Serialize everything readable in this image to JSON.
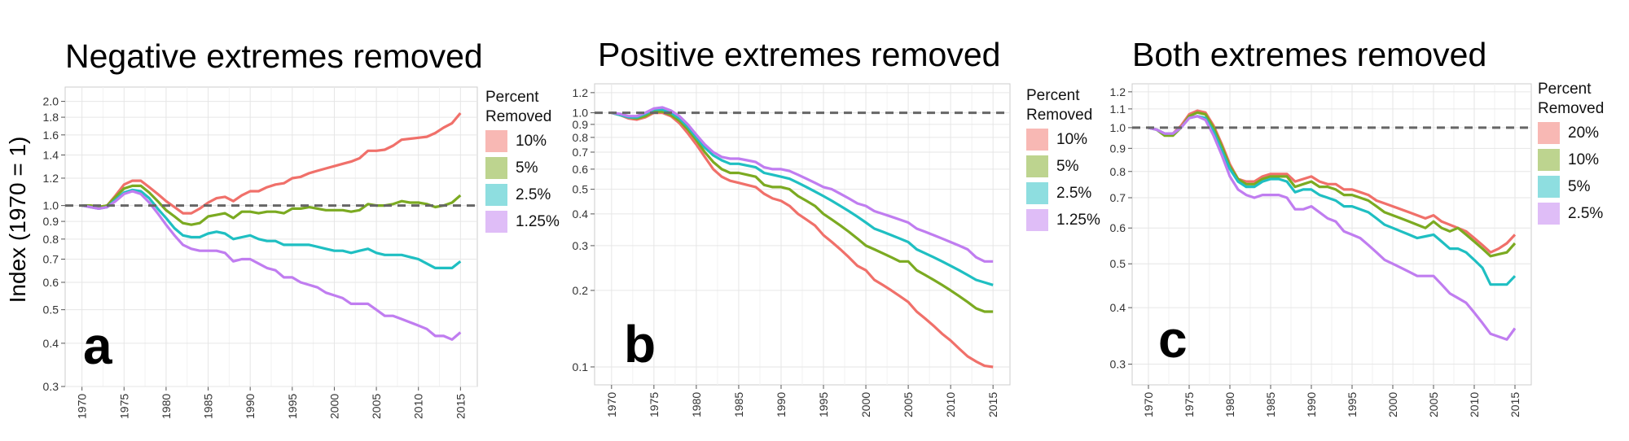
{
  "y_axis_label": "Index (1970 = 1)",
  "colors": {
    "red": "#F0706A",
    "green": "#7BAA21",
    "cyan": "#1FBFC2",
    "purple": "#C07DF0",
    "red_light": "#F8B8B4",
    "green_light": "#BDD48F",
    "cyan_light": "#8EDEE0",
    "purple_light": "#DFBDF7",
    "ref_line": "#666666"
  },
  "chart_data": [
    {
      "type": "line",
      "panel_letter": "a",
      "title": "Negative extremes removed",
      "xlabel": "",
      "ylabel": "Index (1970 = 1)",
      "yscale": "log",
      "ylim": [
        0.3,
        2.2
      ],
      "xlim": [
        1968,
        2017
      ],
      "x_ticks": [
        "1970",
        "1975",
        "1980",
        "1985",
        "1990",
        "1995",
        "2000",
        "2005",
        "2010",
        "2015"
      ],
      "y_ticks": [
        "0.3",
        "0.4",
        "0.5",
        "0.6",
        "0.7",
        "0.8",
        "0.9",
        "1.0",
        "1.2",
        "1.4",
        "1.6",
        "1.8",
        "2.0"
      ],
      "reference_line": 1.0,
      "legend": {
        "title": "Percent Removed",
        "labels": [
          "10%",
          "5%",
          "2.5%",
          "1.25%"
        ]
      },
      "x": [
        1970,
        1971,
        1972,
        1973,
        1974,
        1975,
        1976,
        1977,
        1978,
        1979,
        1980,
        1981,
        1982,
        1983,
        1984,
        1985,
        1986,
        1987,
        1988,
        1989,
        1990,
        1991,
        1992,
        1993,
        1994,
        1995,
        1996,
        1997,
        1998,
        1999,
        2000,
        2001,
        2002,
        2003,
        2004,
        2005,
        2006,
        2007,
        2008,
        2009,
        2010,
        2011,
        2012,
        2013,
        2014,
        2015
      ],
      "series": [
        {
          "name": "10%",
          "color": "#F0706A",
          "values": [
            1.0,
            1.0,
            0.99,
            1.0,
            1.07,
            1.15,
            1.18,
            1.18,
            1.13,
            1.08,
            1.03,
            0.99,
            0.95,
            0.95,
            0.98,
            1.02,
            1.05,
            1.06,
            1.03,
            1.07,
            1.1,
            1.1,
            1.13,
            1.15,
            1.16,
            1.2,
            1.21,
            1.24,
            1.26,
            1.28,
            1.3,
            1.32,
            1.34,
            1.37,
            1.44,
            1.44,
            1.45,
            1.49,
            1.55,
            1.56,
            1.57,
            1.58,
            1.62,
            1.68,
            1.73,
            1.85
          ]
        },
        {
          "name": "5%",
          "color": "#7BAA21",
          "values": [
            1.0,
            1.0,
            0.99,
            1.0,
            1.06,
            1.12,
            1.14,
            1.14,
            1.09,
            1.03,
            0.97,
            0.93,
            0.89,
            0.88,
            0.89,
            0.93,
            0.94,
            0.95,
            0.92,
            0.96,
            0.96,
            0.95,
            0.96,
            0.96,
            0.95,
            0.98,
            0.98,
            0.99,
            0.98,
            0.97,
            0.97,
            0.97,
            0.96,
            0.97,
            1.01,
            1.0,
            1.0,
            1.01,
            1.03,
            1.02,
            1.02,
            1.01,
            0.99,
            1.0,
            1.02,
            1.07
          ]
        },
        {
          "name": "2.5%",
          "color": "#1FBFC2",
          "values": [
            1.0,
            0.99,
            0.98,
            0.99,
            1.04,
            1.09,
            1.11,
            1.1,
            1.05,
            0.98,
            0.92,
            0.86,
            0.82,
            0.81,
            0.81,
            0.83,
            0.84,
            0.83,
            0.8,
            0.81,
            0.82,
            0.8,
            0.79,
            0.79,
            0.77,
            0.77,
            0.77,
            0.77,
            0.76,
            0.75,
            0.74,
            0.74,
            0.73,
            0.74,
            0.75,
            0.73,
            0.72,
            0.72,
            0.72,
            0.71,
            0.7,
            0.68,
            0.66,
            0.66,
            0.66,
            0.69
          ]
        },
        {
          "name": "1.25%",
          "color": "#C07DF0",
          "values": [
            1.0,
            0.99,
            0.98,
            0.99,
            1.03,
            1.08,
            1.1,
            1.08,
            1.02,
            0.95,
            0.88,
            0.82,
            0.77,
            0.75,
            0.74,
            0.74,
            0.74,
            0.73,
            0.69,
            0.7,
            0.7,
            0.68,
            0.66,
            0.65,
            0.62,
            0.62,
            0.6,
            0.59,
            0.58,
            0.56,
            0.55,
            0.54,
            0.52,
            0.52,
            0.52,
            0.5,
            0.48,
            0.48,
            0.47,
            0.46,
            0.45,
            0.44,
            0.42,
            0.42,
            0.41,
            0.43
          ]
        }
      ]
    },
    {
      "type": "line",
      "panel_letter": "b",
      "title": "Positive extremes removed",
      "xlabel": "",
      "ylabel": "",
      "yscale": "log",
      "ylim": [
        0.085,
        1.3
      ],
      "xlim": [
        1968,
        2017
      ],
      "x_ticks": [
        "1970",
        "1975",
        "1980",
        "1985",
        "1990",
        "1995",
        "2000",
        "2005",
        "2010",
        "2015"
      ],
      "y_ticks": [
        "0.1",
        "0.2",
        "0.3",
        "0.4",
        "0.5",
        "0.6",
        "0.7",
        "0.8",
        "0.9",
        "1.0",
        "1.2"
      ],
      "reference_line": 1.0,
      "legend": {
        "title": "Percent Removed",
        "labels": [
          "10%",
          "5%",
          "2.5%",
          "1.25%"
        ]
      },
      "x": [
        1970,
        1971,
        1972,
        1973,
        1974,
        1975,
        1976,
        1977,
        1978,
        1979,
        1980,
        1981,
        1982,
        1983,
        1984,
        1985,
        1986,
        1987,
        1988,
        1989,
        1990,
        1991,
        1992,
        1993,
        1994,
        1995,
        1996,
        1997,
        1998,
        1999,
        2000,
        2001,
        2002,
        2003,
        2004,
        2005,
        2006,
        2007,
        2008,
        2009,
        2010,
        2011,
        2012,
        2013,
        2014,
        2015
      ],
      "series": [
        {
          "name": "10%",
          "color": "#F0706A",
          "values": [
            1.0,
            0.98,
            0.95,
            0.94,
            0.96,
            1.0,
            1.0,
            0.97,
            0.91,
            0.83,
            0.75,
            0.67,
            0.6,
            0.56,
            0.54,
            0.53,
            0.52,
            0.51,
            0.48,
            0.46,
            0.45,
            0.43,
            0.4,
            0.38,
            0.36,
            0.33,
            0.31,
            0.29,
            0.27,
            0.25,
            0.24,
            0.22,
            0.21,
            0.2,
            0.19,
            0.18,
            0.165,
            0.155,
            0.145,
            0.135,
            0.127,
            0.118,
            0.11,
            0.105,
            0.101,
            0.1
          ]
        },
        {
          "name": "5%",
          "color": "#7BAA21",
          "values": [
            1.0,
            0.98,
            0.96,
            0.95,
            0.97,
            1.01,
            1.01,
            0.98,
            0.93,
            0.86,
            0.78,
            0.7,
            0.64,
            0.6,
            0.58,
            0.58,
            0.57,
            0.56,
            0.52,
            0.51,
            0.51,
            0.5,
            0.47,
            0.45,
            0.43,
            0.4,
            0.38,
            0.36,
            0.34,
            0.32,
            0.3,
            0.29,
            0.28,
            0.27,
            0.26,
            0.26,
            0.24,
            0.23,
            0.22,
            0.21,
            0.2,
            0.19,
            0.18,
            0.17,
            0.165,
            0.165
          ]
        },
        {
          "name": "2.5%",
          "color": "#1FBFC2",
          "values": [
            1.0,
            0.98,
            0.96,
            0.96,
            0.99,
            1.03,
            1.03,
            1.0,
            0.95,
            0.88,
            0.8,
            0.73,
            0.68,
            0.65,
            0.63,
            0.63,
            0.62,
            0.61,
            0.58,
            0.57,
            0.56,
            0.55,
            0.53,
            0.51,
            0.49,
            0.47,
            0.45,
            0.43,
            0.41,
            0.39,
            0.37,
            0.35,
            0.34,
            0.33,
            0.32,
            0.31,
            0.29,
            0.28,
            0.27,
            0.26,
            0.25,
            0.24,
            0.23,
            0.22,
            0.215,
            0.21
          ]
        },
        {
          "name": "1.25%",
          "color": "#C07DF0",
          "values": [
            1.0,
            0.99,
            0.97,
            0.97,
            1.0,
            1.04,
            1.05,
            1.02,
            0.97,
            0.9,
            0.82,
            0.75,
            0.7,
            0.67,
            0.66,
            0.66,
            0.65,
            0.64,
            0.61,
            0.6,
            0.6,
            0.59,
            0.57,
            0.55,
            0.53,
            0.51,
            0.5,
            0.48,
            0.46,
            0.44,
            0.43,
            0.41,
            0.4,
            0.39,
            0.38,
            0.37,
            0.35,
            0.34,
            0.33,
            0.32,
            0.31,
            0.3,
            0.29,
            0.27,
            0.26,
            0.26
          ]
        }
      ]
    },
    {
      "type": "line",
      "panel_letter": "c",
      "title": "Both extremes removed",
      "xlabel": "",
      "ylabel": "",
      "yscale": "log",
      "ylim": [
        0.27,
        1.25
      ],
      "xlim": [
        1968,
        2017
      ],
      "x_ticks": [
        "1970",
        "1975",
        "1980",
        "1985",
        "1990",
        "1995",
        "2000",
        "2005",
        "2010",
        "2015"
      ],
      "y_ticks": [
        "0.3",
        "0.4",
        "0.5",
        "0.6",
        "0.7",
        "0.8",
        "0.9",
        "1.0",
        "1.1",
        "1.2"
      ],
      "reference_line": 1.0,
      "legend": {
        "title": "Percent Removed",
        "labels": [
          "20%",
          "10%",
          "5%",
          "2.5%"
        ]
      },
      "x": [
        1970,
        1971,
        1972,
        1973,
        1974,
        1975,
        1976,
        1977,
        1978,
        1979,
        1980,
        1981,
        1982,
        1983,
        1984,
        1985,
        1986,
        1987,
        1988,
        1989,
        1990,
        1991,
        1992,
        1993,
        1994,
        1995,
        1996,
        1997,
        1998,
        1999,
        2000,
        2001,
        2002,
        2003,
        2004,
        2005,
        2006,
        2007,
        2008,
        2009,
        2010,
        2011,
        2012,
        2013,
        2014,
        2015
      ],
      "series": [
        {
          "name": "20%",
          "color": "#F0706A",
          "values": [
            1.0,
            0.99,
            0.97,
            0.97,
            1.01,
            1.07,
            1.09,
            1.08,
            1.01,
            0.92,
            0.83,
            0.77,
            0.76,
            0.76,
            0.78,
            0.79,
            0.79,
            0.79,
            0.76,
            0.77,
            0.78,
            0.76,
            0.75,
            0.75,
            0.73,
            0.73,
            0.72,
            0.71,
            0.69,
            0.68,
            0.67,
            0.66,
            0.65,
            0.64,
            0.63,
            0.64,
            0.62,
            0.61,
            0.6,
            0.59,
            0.57,
            0.55,
            0.53,
            0.54,
            0.555,
            0.58
          ]
        },
        {
          "name": "10%",
          "color": "#7BAA21",
          "values": [
            1.0,
            0.99,
            0.96,
            0.96,
            1.0,
            1.06,
            1.08,
            1.07,
            1.0,
            0.91,
            0.82,
            0.77,
            0.75,
            0.75,
            0.77,
            0.78,
            0.78,
            0.78,
            0.74,
            0.75,
            0.76,
            0.74,
            0.74,
            0.73,
            0.71,
            0.71,
            0.7,
            0.69,
            0.67,
            0.65,
            0.64,
            0.63,
            0.62,
            0.61,
            0.6,
            0.62,
            0.6,
            0.59,
            0.6,
            0.58,
            0.56,
            0.54,
            0.52,
            0.525,
            0.53,
            0.555
          ]
        },
        {
          "name": "5%",
          "color": "#1FBFC2",
          "values": [
            1.0,
            0.99,
            0.97,
            0.97,
            1.0,
            1.05,
            1.06,
            1.05,
            0.98,
            0.89,
            0.81,
            0.76,
            0.74,
            0.74,
            0.76,
            0.77,
            0.77,
            0.76,
            0.72,
            0.73,
            0.73,
            0.71,
            0.7,
            0.69,
            0.67,
            0.67,
            0.66,
            0.65,
            0.63,
            0.61,
            0.6,
            0.59,
            0.58,
            0.57,
            0.575,
            0.58,
            0.56,
            0.54,
            0.54,
            0.53,
            0.51,
            0.49,
            0.45,
            0.45,
            0.45,
            0.47
          ]
        },
        {
          "name": "2.5%",
          "color": "#C07DF0",
          "values": [
            1.0,
            0.99,
            0.97,
            0.97,
            1.0,
            1.05,
            1.06,
            1.04,
            0.96,
            0.87,
            0.78,
            0.73,
            0.71,
            0.7,
            0.71,
            0.71,
            0.71,
            0.7,
            0.66,
            0.66,
            0.67,
            0.65,
            0.63,
            0.62,
            0.59,
            0.58,
            0.57,
            0.55,
            0.53,
            0.51,
            0.5,
            0.49,
            0.48,
            0.47,
            0.47,
            0.47,
            0.45,
            0.43,
            0.42,
            0.41,
            0.39,
            0.37,
            0.35,
            0.345,
            0.34,
            0.36
          ]
        }
      ]
    }
  ]
}
